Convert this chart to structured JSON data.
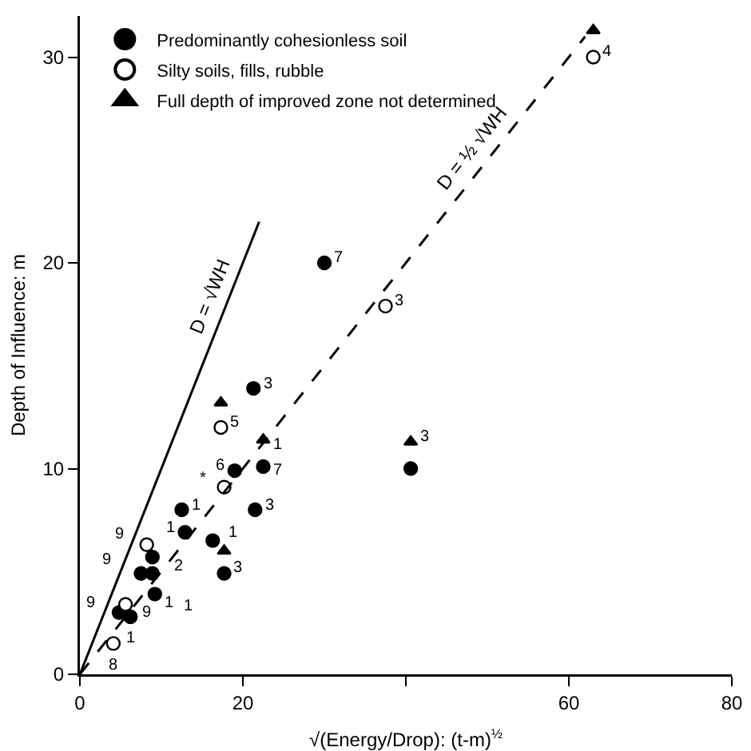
{
  "chart_data": {
    "type": "scatter",
    "xlabel": "√(Energy/Drop): (t-m)$^{½}$",
    "ylabel": "Depth of Influence: m",
    "xlim": [
      0,
      80
    ],
    "xticks": [
      0,
      20,
      {
        "value": 40,
        "label": null
      },
      60,
      80
    ],
    "ylim": [
      0,
      32
    ],
    "yticks": [
      0,
      10,
      20,
      30
    ],
    "grid": false,
    "legend": "top left",
    "series": [
      {
        "name": "Predominantly cohesionless soil",
        "marker": "circle",
        "color": "#000000",
        "x": [
          30,
          21.3,
          22.5,
          19,
          40.6,
          21.5,
          12.5,
          12.9,
          16.3,
          17.7,
          8.9,
          7.5,
          8.9,
          9.2,
          4.8,
          6.2
        ],
        "values": [
          20,
          13.9,
          10.1,
          9.9,
          10,
          8,
          8,
          6.9,
          6.5,
          4.9,
          5.7,
          4.9,
          4.9,
          3.9,
          3,
          2.8
        ]
      },
      {
        "name": "Silty soils, fills, rubble",
        "marker": "circle",
        "color": "#ffffff",
        "x": [
          63,
          37.5,
          17.3,
          17.7,
          8.2,
          5.6,
          4.1
        ],
        "values": [
          30,
          17.9,
          12,
          9.1,
          6.3,
          3.4,
          1.5
        ]
      },
      {
        "name": "Full depth of improved zone not determined",
        "marker": "triangle",
        "color": "#000000",
        "x": [
          63,
          17.3,
          22.5,
          40.6,
          17.7
        ],
        "values": [
          31.3,
          13.2,
          11.4,
          11.3,
          6
        ]
      },
      {
        "name": "D = √WH",
        "type": "line",
        "marker": "none",
        "line_style": "solid",
        "color": "#000000",
        "x": [
          0,
          22
        ],
        "values": [
          0,
          22
        ]
      },
      {
        "name": "D = ½ √WH",
        "type": "line",
        "marker": "none",
        "line_style": "dashed",
        "color": "#000000",
        "x": [
          0,
          62
        ],
        "values": [
          0,
          31
        ]
      }
    ],
    "annotations": [
      {
        "text": "7",
        "x": 30,
        "y": 20
      },
      {
        "text": "3",
        "x": 21.3,
        "y": 13.9
      },
      {
        "text": "5",
        "x": 17.3,
        "y": 12
      },
      {
        "text": "1",
        "x": 22.5,
        "y": 11.4
      },
      {
        "text": "6",
        "x": 19,
        "y": 9.9
      },
      {
        "text": "7",
        "x": 22.5,
        "y": 10.1
      },
      {
        "text": "3",
        "x": 40.6,
        "y": 11.3
      },
      {
        "text": "3",
        "x": 21.5,
        "y": 8
      },
      {
        "text": "1",
        "x": 12.5,
        "y": 8
      },
      {
        "text": "*",
        "x": 17.7,
        "y": 9.1
      },
      {
        "text": "1",
        "x": 12.9,
        "y": 6.9
      },
      {
        "text": "1",
        "x": 16.3,
        "y": 6.5
      },
      {
        "text": "3",
        "x": 17.7,
        "y": 4.9
      },
      {
        "text": "3",
        "x": 37.5,
        "y": 17.9
      },
      {
        "text": "4",
        "x": 63,
        "y": 30
      },
      {
        "text": "9",
        "x": 8.2,
        "y": 6.3
      },
      {
        "text": "2",
        "x": 8.9,
        "y": 5.7
      },
      {
        "text": "1",
        "x": 8.9,
        "y": 4.9
      },
      {
        "text": "9",
        "x": 7.5,
        "y": 4.9
      },
      {
        "text": "9",
        "x": 5.6,
        "y": 3.4
      },
      {
        "text": "1",
        "x": 9.2,
        "y": 3.9
      },
      {
        "text": "1",
        "x": 6.2,
        "y": 2.8
      },
      {
        "text": "9",
        "x": 4.8,
        "y": 3
      },
      {
        "text": "8",
        "x": 4.1,
        "y": 1.5
      }
    ]
  }
}
